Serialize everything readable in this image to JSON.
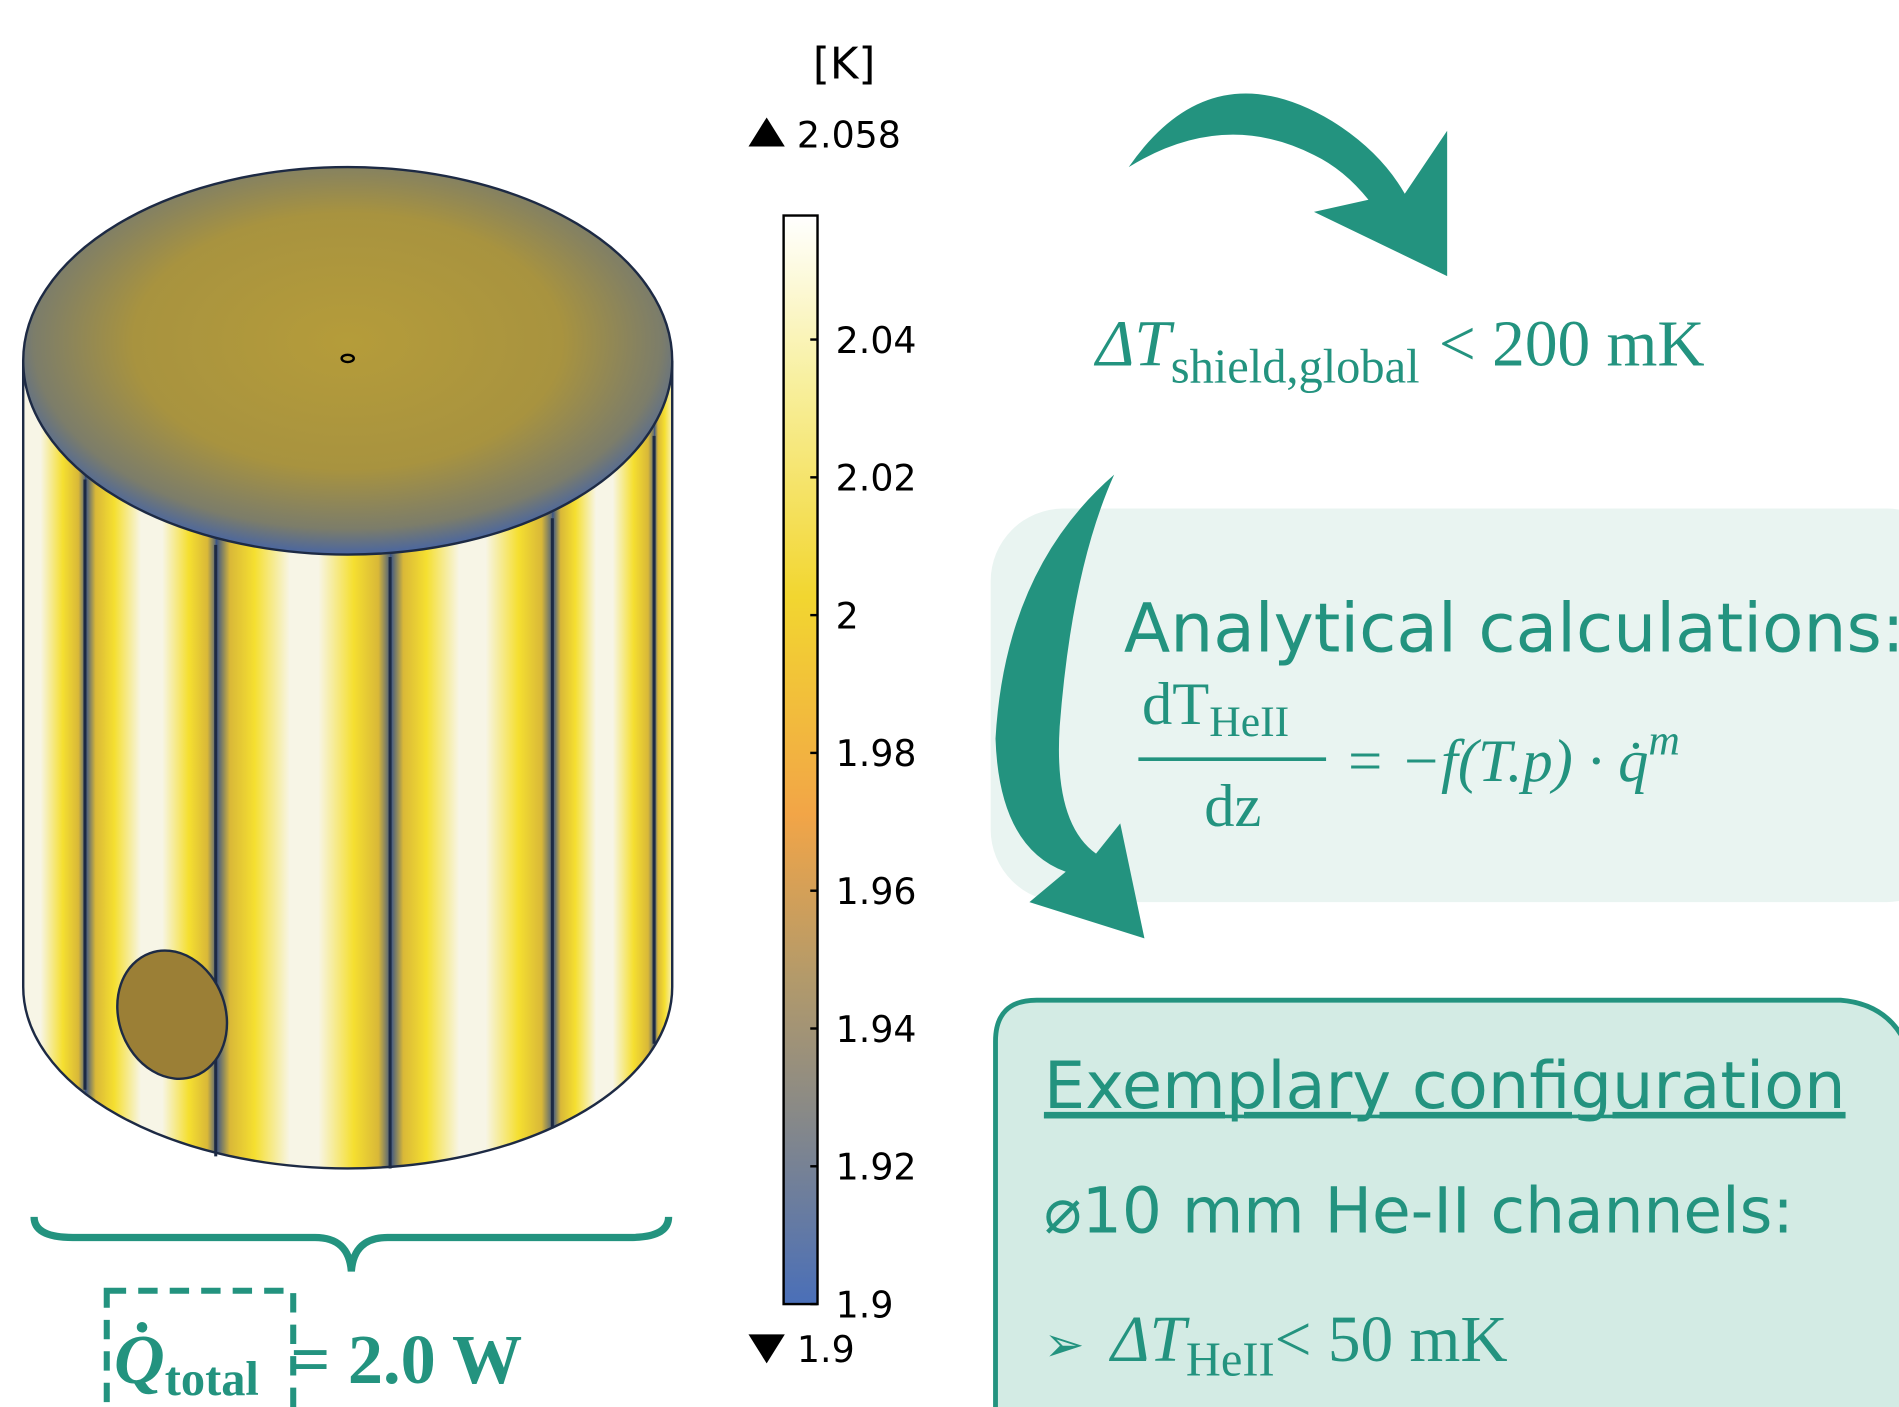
{
  "colorbar": {
    "unit": "[K]",
    "max": 2.058,
    "min": 1.9,
    "ticks": [
      2.04,
      2.02,
      2,
      1.98,
      1.96,
      1.94,
      1.92,
      1.9
    ]
  },
  "heat_load": {
    "symbol": "Q̇",
    "subscript": "total",
    "rest": "= 2.0 W"
  },
  "global_limit": {
    "symbol": "ΔT",
    "subscript": "shield,global",
    "rest": "< 200 mK"
  },
  "analytical": {
    "title": "Analytical calculations:",
    "numerator": "dT",
    "numerator_subscript": "HeII",
    "denominator": "dz",
    "rhs": "= −f(T.p) · q̇",
    "rhs_superscript": "m"
  },
  "configuration": {
    "title": "Exemplary configuration",
    "line": "⌀10 mm He-II channels:",
    "bullet": "➢",
    "result_symbol": "ΔT",
    "result_subscript": "HeII",
    "result_rest": "< 50 mK"
  }
}
